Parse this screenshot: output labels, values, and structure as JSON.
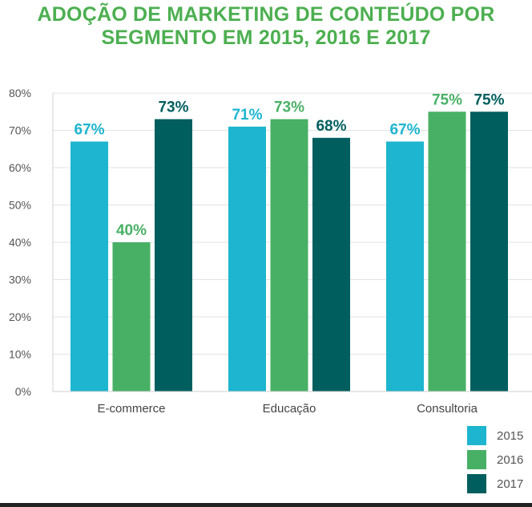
{
  "title_lines": [
    "ADOÇÃO DE MARKETING DE CONTEÚDO POR",
    "SEGMENTO EM 2015, 2016 E 2017"
  ],
  "chart_data": {
    "type": "bar",
    "title": "ADOÇÃO DE MARKETING DE CONTEÚDO POR SEGMENTO EM 2015, 2016 E 2017",
    "categories": [
      "E-commerce",
      "Educação",
      "Consultoria"
    ],
    "series": [
      {
        "name": "2015",
        "color": "#1db5cf",
        "values": [
          67,
          71,
          67
        ],
        "labels": [
          "67%",
          "71%",
          "67%"
        ]
      },
      {
        "name": "2016",
        "color": "#48b065",
        "values": [
          40,
          73,
          75
        ],
        "labels": [
          "40%",
          "73%",
          "75%"
        ]
      },
      {
        "name": "2017",
        "color": "#005e5e",
        "values": [
          73,
          68,
          75
        ],
        "labels": [
          "73%",
          "68%",
          "75%"
        ]
      }
    ],
    "ylim": [
      0,
      80
    ],
    "yticks": [
      0,
      10,
      20,
      30,
      40,
      50,
      60,
      70,
      80
    ],
    "ytick_labels": [
      "0%",
      "10%",
      "20%",
      "30%",
      "40%",
      "50%",
      "60%",
      "70%",
      "80%"
    ],
    "grid": true,
    "legend": "bottom-right"
  }
}
